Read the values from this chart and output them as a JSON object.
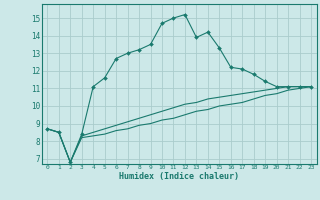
{
  "xlabel": "Humidex (Indice chaleur)",
  "bg_color": "#cce8e8",
  "grid_color": "#aacccc",
  "line_color": "#1a7a6e",
  "xlim": [
    -0.5,
    23.5
  ],
  "ylim": [
    6.7,
    15.8
  ],
  "yticks": [
    7,
    8,
    9,
    10,
    11,
    12,
    13,
    14,
    15
  ],
  "xticks": [
    0,
    1,
    2,
    3,
    4,
    5,
    6,
    7,
    8,
    9,
    10,
    11,
    12,
    13,
    14,
    15,
    16,
    17,
    18,
    19,
    20,
    21,
    22,
    23
  ],
  "series1_x": [
    0,
    1,
    2,
    3,
    4,
    5,
    6,
    7,
    8,
    9,
    10,
    11,
    12,
    13,
    14,
    15,
    16,
    17,
    18,
    19,
    20,
    21,
    22,
    23
  ],
  "series1_y": [
    8.7,
    8.5,
    6.8,
    8.4,
    11.1,
    11.6,
    12.7,
    13.0,
    13.2,
    13.5,
    14.7,
    15.0,
    15.2,
    13.9,
    14.2,
    13.3,
    12.2,
    12.1,
    11.8,
    11.4,
    11.1,
    11.1,
    11.1,
    11.1
  ],
  "series2_x": [
    0,
    1,
    2,
    3,
    4,
    5,
    6,
    7,
    8,
    9,
    10,
    11,
    12,
    13,
    14,
    15,
    16,
    17,
    18,
    19,
    20,
    21,
    22,
    23
  ],
  "series2_y": [
    8.7,
    8.5,
    6.8,
    8.3,
    8.5,
    8.7,
    8.9,
    9.1,
    9.3,
    9.5,
    9.7,
    9.9,
    10.1,
    10.2,
    10.4,
    10.5,
    10.6,
    10.7,
    10.8,
    10.9,
    11.0,
    11.1,
    11.1,
    11.1
  ],
  "series3_x": [
    0,
    1,
    2,
    3,
    4,
    5,
    6,
    7,
    8,
    9,
    10,
    11,
    12,
    13,
    14,
    15,
    16,
    17,
    18,
    19,
    20,
    21,
    22,
    23
  ],
  "series3_y": [
    8.7,
    8.5,
    6.8,
    8.2,
    8.3,
    8.4,
    8.6,
    8.7,
    8.9,
    9.0,
    9.2,
    9.3,
    9.5,
    9.7,
    9.8,
    10.0,
    10.1,
    10.2,
    10.4,
    10.6,
    10.7,
    10.9,
    11.0,
    11.1
  ]
}
